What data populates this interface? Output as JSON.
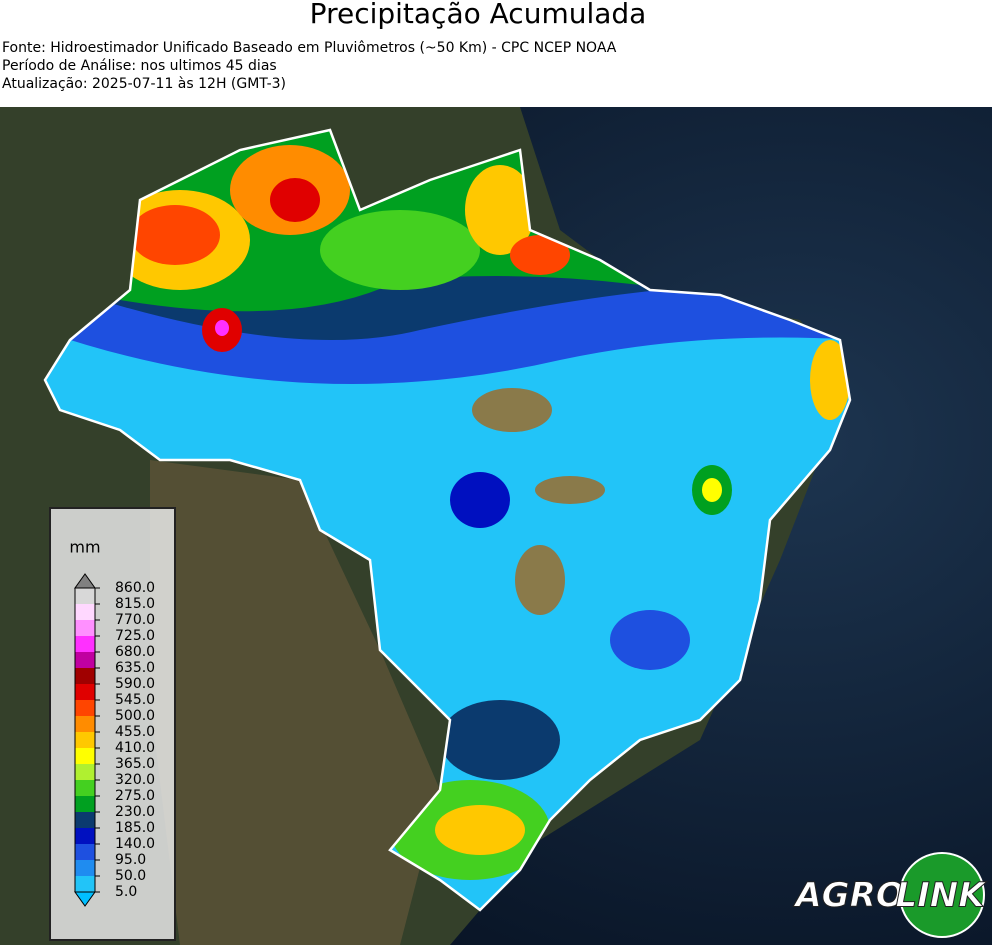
{
  "header": {
    "title": "Precipitação Acumulada",
    "lines": [
      "Fonte: Hidroestimador Unificado Baseado em Pluviômetros (~50 Km) - CPC NCEP NOAA",
      "Período de Análise: nos ultimos 45 dias",
      "Atualização: 2025-07-11 às 12H (GMT-3)"
    ]
  },
  "legend": {
    "unit": "mm",
    "ticks": [
      {
        "value": 5,
        "label": "5.0"
      },
      {
        "value": 50,
        "label": "50.0"
      },
      {
        "value": 95,
        "label": "95.0"
      },
      {
        "value": 140,
        "label": "140.0"
      },
      {
        "value": 185,
        "label": "185.0"
      },
      {
        "value": 230,
        "label": "230.0"
      },
      {
        "value": 275,
        "label": "275.0"
      },
      {
        "value": 320,
        "label": "320.0"
      },
      {
        "value": 365,
        "label": "365.0"
      },
      {
        "value": 410,
        "label": "410.0"
      },
      {
        "value": 455,
        "label": "455.0"
      },
      {
        "value": 500,
        "label": "500.0"
      },
      {
        "value": 545,
        "label": "545.0"
      },
      {
        "value": 590,
        "label": "590.0"
      },
      {
        "value": 635,
        "label": "635.0"
      },
      {
        "value": 680,
        "label": "680.0"
      },
      {
        "value": 725,
        "label": "725.0"
      },
      {
        "value": 770,
        "label": "770.0"
      },
      {
        "value": 815,
        "label": "815.0"
      },
      {
        "value": 860,
        "label": "860.0"
      }
    ],
    "colors": [
      "#22c4f8",
      "#1f8cf0",
      "#1e50e0",
      "#0010c0",
      "#0b3a6e",
      "#00a020",
      "#44d020",
      "#b0f030",
      "#ffff00",
      "#ffc800",
      "#ff8c00",
      "#ff4500",
      "#e00000",
      "#a00000",
      "#c000a0",
      "#ff30ff",
      "#ff90ff",
      "#ffd8ff",
      "#d8d8d8"
    ],
    "under_color": "#00bfff",
    "over_color": "#808080"
  },
  "logo": {
    "left": "AGRO",
    "right": "LINK"
  }
}
